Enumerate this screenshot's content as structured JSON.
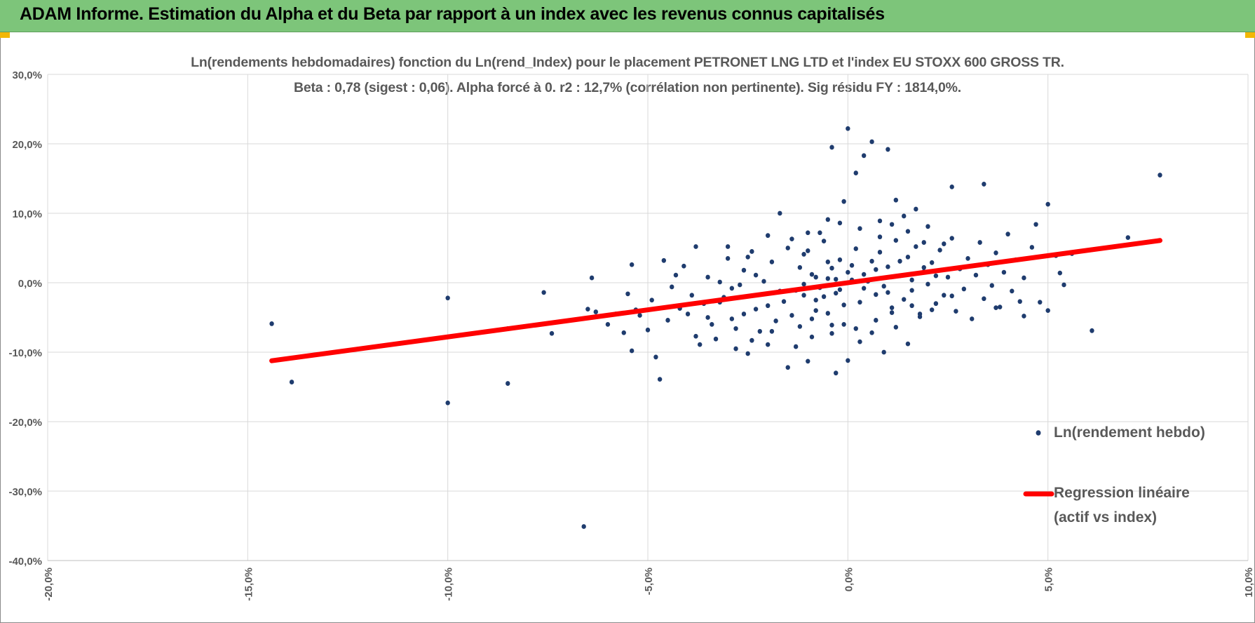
{
  "header": {
    "title": "ADAM Informe. Estimation du Alpha et du Beta par rapport à un index avec les revenus connus capitalisés",
    "banner_color": "#7dc57a",
    "accent_color": "#f2b705"
  },
  "chart_data": {
    "type": "scatter",
    "title": "Ln(rendements hebdomadaires) fonction du Ln(rend_Index) pour le placement PETRONET LNG LTD et l'index EU STOXX 600 GROSS TR.",
    "subtitle": "Beta : 0,78 (sigest : 0,06).  Alpha forcé à 0. r2 : 12,7% (corrélation non pertinente). Sig résidu FY : 1814,0%.",
    "xlabel": "",
    "ylabel": "",
    "xlim": [
      -0.2,
      0.1
    ],
    "ylim": [
      -0.4,
      0.3
    ],
    "x_ticks": [
      -0.2,
      -0.15,
      -0.1,
      -0.05,
      0.0,
      0.05,
      0.1
    ],
    "x_tick_labels": [
      "-20,0%",
      "-15,0%",
      "-10,0%",
      "-5,0%",
      "0,0%",
      "5,0%",
      "10,0%"
    ],
    "y_ticks": [
      0.3,
      0.2,
      0.1,
      0.0,
      -0.1,
      -0.2,
      -0.3,
      -0.4
    ],
    "y_tick_labels": [
      "30,0%",
      "20,0%",
      "10,0%",
      "0,0%",
      "-10,0%",
      "-20,0%",
      "-30,0%",
      "-40,0%"
    ],
    "grid": true,
    "legend_position": "right",
    "series": [
      {
        "name": "Ln(rendement hebdo)",
        "kind": "scatter",
        "color": "#1f3c6e",
        "points": [
          [
            -0.144,
            -0.059
          ],
          [
            -0.139,
            -0.143
          ],
          [
            -0.1,
            -0.022
          ],
          [
            -0.1,
            -0.173
          ],
          [
            -0.085,
            -0.066
          ],
          [
            -0.085,
            -0.145
          ],
          [
            -0.076,
            -0.014
          ],
          [
            -0.074,
            -0.073
          ],
          [
            -0.066,
            -0.351
          ],
          [
            -0.065,
            -0.038
          ],
          [
            -0.064,
            0.007
          ],
          [
            -0.063,
            -0.042
          ],
          [
            -0.06,
            -0.06
          ],
          [
            -0.058,
            -0.045
          ],
          [
            -0.056,
            -0.072
          ],
          [
            -0.055,
            -0.016
          ],
          [
            -0.054,
            0.026
          ],
          [
            -0.054,
            -0.098
          ],
          [
            -0.053,
            -0.039
          ],
          [
            -0.052,
            -0.047
          ],
          [
            -0.05,
            -0.068
          ],
          [
            -0.049,
            -0.025
          ],
          [
            -0.048,
            -0.107
          ],
          [
            -0.047,
            -0.139
          ],
          [
            -0.046,
            0.032
          ],
          [
            -0.045,
            -0.054
          ],
          [
            -0.044,
            -0.006
          ],
          [
            -0.043,
            0.011
          ],
          [
            -0.042,
            -0.037
          ],
          [
            -0.041,
            0.024
          ],
          [
            -0.04,
            -0.045
          ],
          [
            -0.039,
            -0.018
          ],
          [
            -0.038,
            0.052
          ],
          [
            -0.038,
            -0.077
          ],
          [
            -0.037,
            -0.089
          ],
          [
            -0.036,
            -0.03
          ],
          [
            -0.035,
            0.008
          ],
          [
            -0.034,
            -0.06
          ],
          [
            -0.033,
            -0.081
          ],
          [
            -0.032,
            0.001
          ],
          [
            -0.031,
            -0.021
          ],
          [
            -0.03,
            0.035
          ],
          [
            -0.029,
            -0.052
          ],
          [
            -0.028,
            -0.095
          ],
          [
            -0.027,
            -0.003
          ],
          [
            -0.026,
            0.018
          ],
          [
            -0.025,
            -0.102
          ],
          [
            -0.024,
            0.045
          ],
          [
            -0.023,
            -0.038
          ],
          [
            -0.022,
            -0.07
          ],
          [
            -0.021,
            0.002
          ],
          [
            -0.02,
            -0.089
          ],
          [
            -0.019,
            0.03
          ],
          [
            -0.018,
            -0.055
          ],
          [
            -0.017,
            0.1
          ],
          [
            -0.016,
            -0.027
          ],
          [
            -0.015,
            -0.122
          ],
          [
            -0.014,
            0.063
          ],
          [
            -0.013,
            -0.011
          ],
          [
            -0.012,
            -0.063
          ],
          [
            -0.011,
            0.041
          ],
          [
            -0.01,
            -0.113
          ],
          [
            -0.009,
            0.012
          ],
          [
            -0.008,
            -0.04
          ],
          [
            -0.007,
            0.072
          ],
          [
            -0.006,
            -0.02
          ],
          [
            -0.005,
            0.03
          ],
          [
            -0.004,
            -0.073
          ],
          [
            -0.003,
            0.005
          ],
          [
            -0.002,
            0.086
          ],
          [
            -0.001,
            -0.032
          ],
          [
            0.0,
            0.015
          ],
          [
            -0.012,
            0.022
          ],
          [
            -0.011,
            -0.018
          ],
          [
            -0.01,
            0.046
          ],
          [
            -0.009,
            -0.052
          ],
          [
            -0.008,
            0.008
          ],
          [
            -0.007,
            -0.007
          ],
          [
            -0.006,
            0.06
          ],
          [
            -0.005,
            -0.044
          ],
          [
            -0.004,
            0.021
          ],
          [
            -0.003,
            -0.015
          ],
          [
            -0.002,
            0.033
          ],
          [
            -0.001,
            -0.06
          ],
          [
            0.001,
            0.004
          ],
          [
            0.002,
            0.049
          ],
          [
            0.003,
            -0.028
          ],
          [
            0.004,
            0.012
          ],
          [
            -0.004,
            0.195
          ],
          [
            -0.001,
            0.117
          ],
          [
            0.0,
            0.222
          ],
          [
            0.002,
            0.158
          ],
          [
            0.004,
            0.183
          ],
          [
            0.006,
            0.203
          ],
          [
            0.008,
            0.089
          ],
          [
            0.01,
            0.192
          ],
          [
            0.012,
            0.119
          ],
          [
            0.014,
            0.096
          ],
          [
            0.017,
            0.106
          ],
          [
            0.02,
            0.081
          ],
          [
            -0.003,
            -0.13
          ],
          [
            0.0,
            -0.112
          ],
          [
            0.003,
            -0.085
          ],
          [
            0.006,
            -0.072
          ],
          [
            0.009,
            -0.1
          ],
          [
            0.012,
            -0.064
          ],
          [
            0.015,
            -0.088
          ],
          [
            0.018,
            -0.049
          ],
          [
            0.005,
            0.002
          ],
          [
            0.006,
            0.031
          ],
          [
            0.007,
            -0.017
          ],
          [
            0.008,
            0.044
          ],
          [
            0.009,
            -0.005
          ],
          [
            0.01,
            0.023
          ],
          [
            0.011,
            -0.036
          ],
          [
            0.012,
            0.061
          ],
          [
            0.013,
            0.01
          ],
          [
            0.014,
            -0.024
          ],
          [
            0.015,
            0.037
          ],
          [
            0.016,
            -0.011
          ],
          [
            0.017,
            0.052
          ],
          [
            0.018,
            -0.045
          ],
          [
            0.019,
            0.016
          ],
          [
            0.02,
            -0.002
          ],
          [
            0.021,
            0.029
          ],
          [
            0.022,
            -0.03
          ],
          [
            0.023,
            0.047
          ],
          [
            0.024,
            -0.018
          ],
          [
            0.025,
            0.008
          ],
          [
            0.026,
            0.064
          ],
          [
            0.027,
            -0.041
          ],
          [
            0.028,
            0.02
          ],
          [
            0.029,
            -0.009
          ],
          [
            0.03,
            0.035
          ],
          [
            0.031,
            -0.052
          ],
          [
            0.032,
            0.011
          ],
          [
            0.033,
            0.058
          ],
          [
            0.034,
            -0.023
          ],
          [
            0.035,
            0.026
          ],
          [
            0.036,
            -0.004
          ],
          [
            0.037,
            0.043
          ],
          [
            0.038,
            -0.035
          ],
          [
            0.039,
            0.015
          ],
          [
            0.04,
            0.07
          ],
          [
            0.041,
            -0.012
          ],
          [
            0.042,
            0.033
          ],
          [
            0.043,
            -0.027
          ],
          [
            0.044,
            0.007
          ],
          [
            0.046,
            0.051
          ],
          [
            0.048,
            -0.028
          ],
          [
            0.05,
            0.113
          ],
          [
            0.05,
            -0.04
          ],
          [
            0.052,
            0.039
          ],
          [
            0.053,
            0.014
          ],
          [
            0.054,
            -0.003
          ],
          [
            0.056,
            0.042
          ],
          [
            0.034,
            0.142
          ],
          [
            0.026,
            0.138
          ],
          [
            0.061,
            -0.069
          ],
          [
            0.07,
            0.065
          ],
          [
            0.078,
            0.155
          ],
          [
            0.044,
            -0.048
          ],
          [
            0.037,
            -0.036
          ],
          [
            0.047,
            0.084
          ],
          [
            -0.035,
            -0.05
          ],
          [
            -0.032,
            -0.028
          ],
          [
            -0.029,
            -0.008
          ],
          [
            -0.026,
            -0.045
          ],
          [
            -0.023,
            0.011
          ],
          [
            -0.02,
            -0.033
          ],
          [
            -0.017,
            -0.012
          ],
          [
            -0.014,
            -0.047
          ],
          [
            -0.011,
            -0.002
          ],
          [
            -0.008,
            -0.025
          ],
          [
            -0.005,
            0.006
          ],
          [
            -0.002,
            -0.01
          ],
          [
            0.001,
            0.025
          ],
          [
            0.004,
            -0.008
          ],
          [
            0.007,
            0.019
          ],
          [
            0.01,
            -0.014
          ],
          [
            0.013,
            0.031
          ],
          [
            0.016,
            0.004
          ],
          [
            0.019,
            0.022
          ],
          [
            0.022,
            0.01
          ],
          [
            -0.03,
            0.052
          ],
          [
            -0.025,
            0.037
          ],
          [
            -0.02,
            0.068
          ],
          [
            -0.015,
            0.05
          ],
          [
            -0.01,
            0.072
          ],
          [
            -0.005,
            0.091
          ],
          [
            0.003,
            0.078
          ],
          [
            0.008,
            0.066
          ],
          [
            0.011,
            0.084
          ],
          [
            0.015,
            0.074
          ],
          [
            0.019,
            0.058
          ],
          [
            0.024,
            0.056
          ],
          [
            -0.028,
            -0.066
          ],
          [
            -0.024,
            -0.083
          ],
          [
            -0.019,
            -0.07
          ],
          [
            -0.013,
            -0.092
          ],
          [
            -0.009,
            -0.078
          ],
          [
            -0.004,
            -0.061
          ],
          [
            0.002,
            -0.066
          ],
          [
            0.007,
            -0.054
          ],
          [
            0.011,
            -0.043
          ],
          [
            0.016,
            -0.033
          ],
          [
            0.021,
            -0.039
          ],
          [
            0.026,
            -0.019
          ]
        ]
      },
      {
        "name": "Regression linéaire (actif vs index)",
        "kind": "line",
        "color": "#ff0000",
        "slope": 0.78,
        "intercept": 0.0,
        "x_range": [
          -0.144,
          0.078
        ]
      }
    ],
    "legend": [
      {
        "label_lines": [
          "Ln(rendement hebdo)"
        ]
      },
      {
        "label_lines": [
          "Regression linéaire",
          "(actif vs index)"
        ]
      }
    ]
  }
}
